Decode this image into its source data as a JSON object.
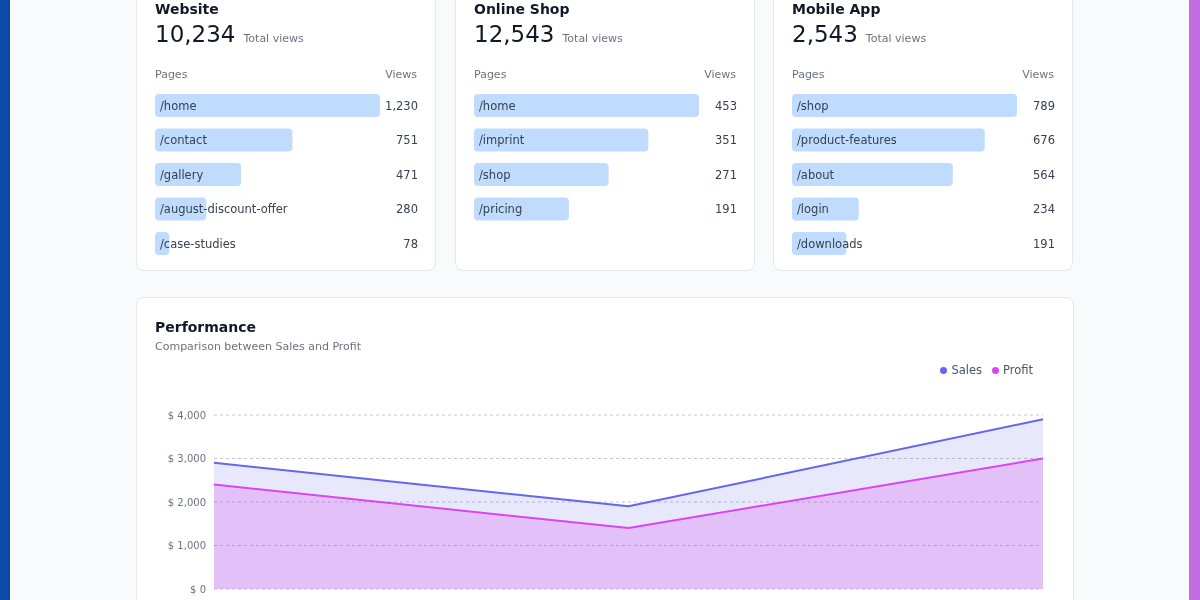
{
  "chart_data": [
    {
      "type": "bar",
      "orientation": "horizontal",
      "title": "Website",
      "annotations": [
        "10,234",
        "Total views"
      ],
      "ylabel": "Pages",
      "xlabel": "Views",
      "categories": [
        "/home",
        "/contact",
        "/gallery",
        "/august-discount-offer",
        "/case-studies"
      ],
      "values": [
        1230,
        751,
        471,
        280,
        78
      ],
      "value_labels": [
        "1,230",
        "751",
        "471",
        "280",
        "78"
      ],
      "color": "#bfdbfe"
    },
    {
      "type": "bar",
      "orientation": "horizontal",
      "title": "Online Shop",
      "annotations": [
        "12,543",
        "Total views"
      ],
      "ylabel": "Pages",
      "xlabel": "Views",
      "categories": [
        "/home",
        "/imprint",
        "/shop",
        "/pricing"
      ],
      "values": [
        453,
        351,
        271,
        191
      ],
      "color": "#bfdbfe",
      "data_labels": true
    },
    {
      "type": "bar",
      "orientation": "horizontal",
      "title": "Mobile App",
      "annotations": [
        "2,543",
        "Total views"
      ],
      "ylabel": "Pages",
      "xlabel": "Views",
      "categories": [
        "/shop",
        "/product-features",
        "/about",
        "/login",
        "/downloads"
      ],
      "values": [
        789,
        676,
        564,
        234,
        191
      ],
      "color": "#bfdbfe",
      "data_labels": true
    },
    {
      "type": "area",
      "title": "Performance",
      "subtitle": "Comparison between Sales and Profit",
      "categories": [
        null,
        null,
        null
      ],
      "tick_labels": "y",
      "ylim": [
        0,
        4000
      ],
      "yticks": [
        {
          "value": 0,
          "label": "$ 0"
        },
        {
          "value": 1000,
          "label": "$ 1,000"
        },
        {
          "value": 2000,
          "label": "$ 2,000"
        },
        {
          "value": 3000,
          "label": "$ 3,000"
        },
        {
          "value": 4000,
          "label": "$ 4,000"
        }
      ],
      "grid": "y",
      "legend": "top right",
      "series": [
        {
          "name": "Sales",
          "color": "#6366f1",
          "values": [
            2900,
            1900,
            3900
          ]
        },
        {
          "name": "Profit",
          "color": "#d946ef",
          "values": [
            2400,
            1400,
            3000
          ]
        }
      ]
    }
  ]
}
